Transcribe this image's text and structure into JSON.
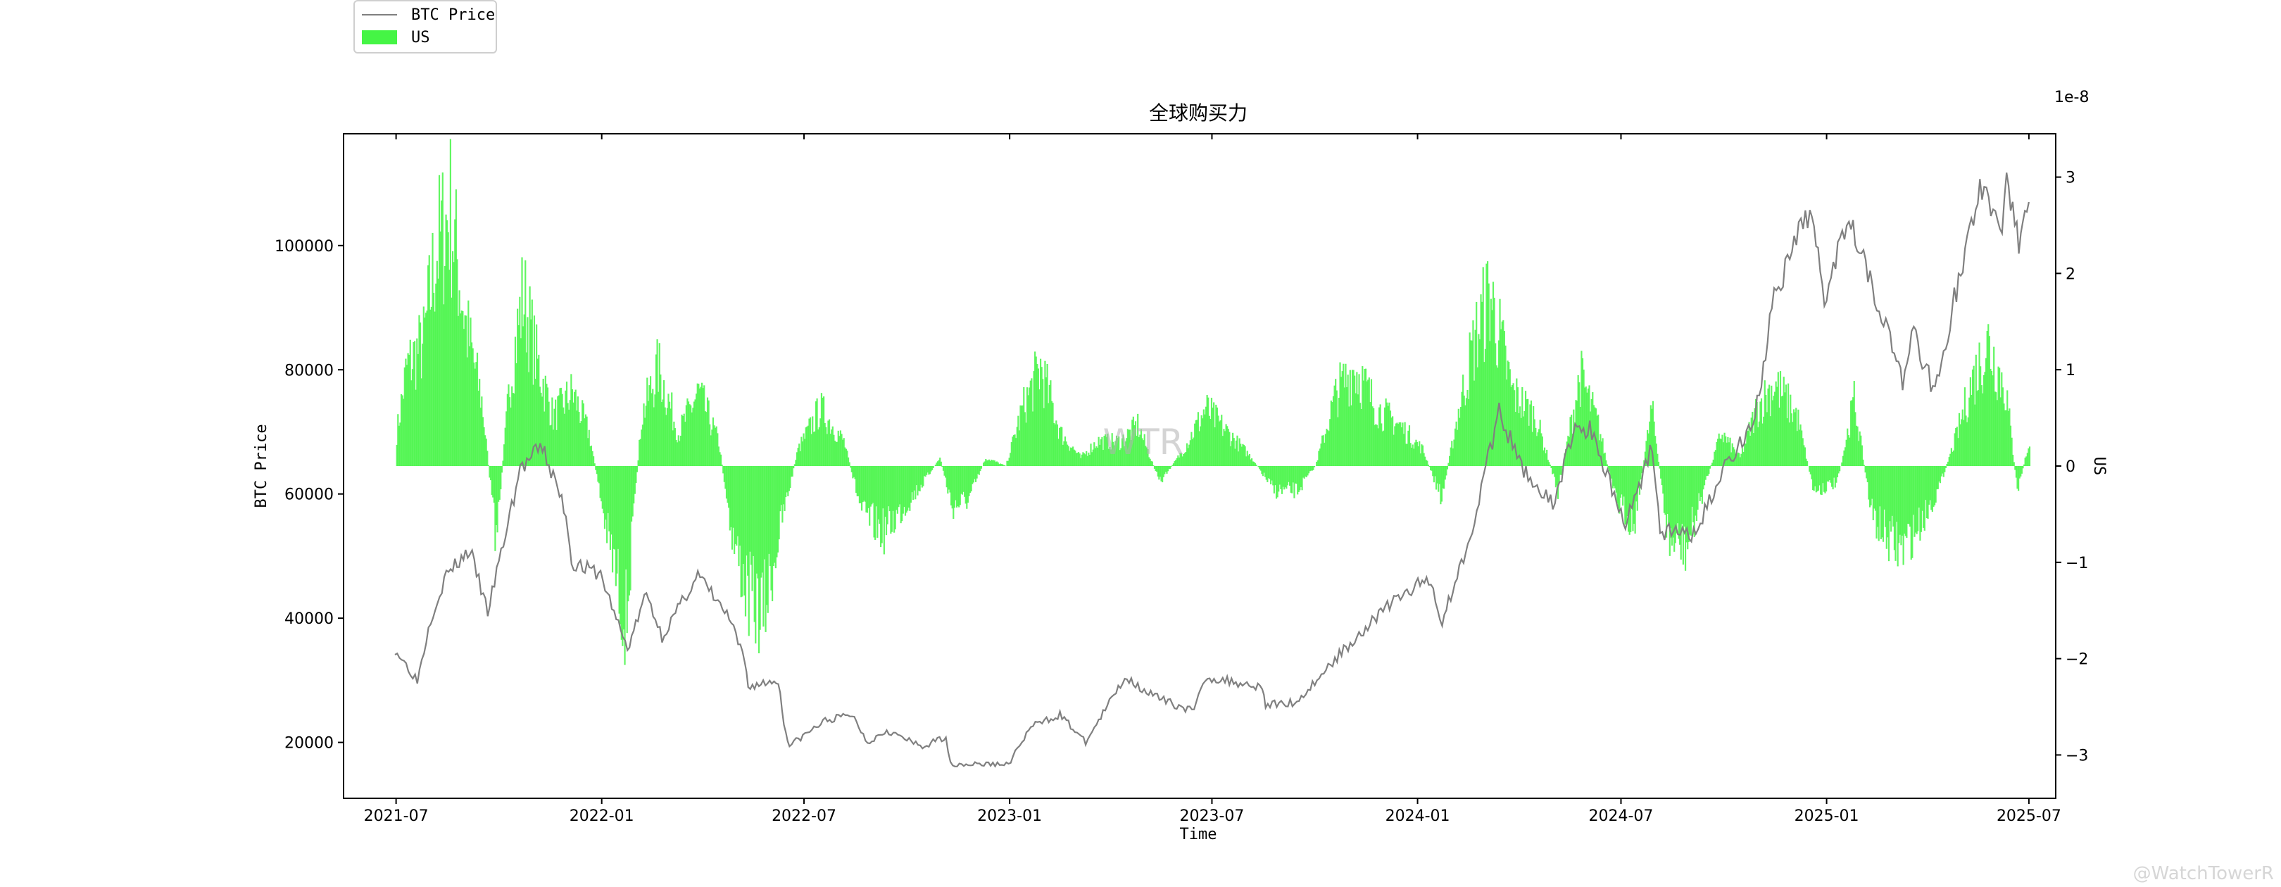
{
  "legend": {
    "price_label": "BTC Price",
    "flow_label": "US"
  },
  "watermark_center": "WTR",
  "watermark_corner": "@WatchTowerR",
  "chart_data": {
    "type": "bar+line",
    "title": "全球购买力",
    "xlabel": "Time",
    "ylabel_left": "BTC Price",
    "ylabel_right": "US",
    "right_axis_offset_text": "1e-8",
    "x_ticks": [
      "2021-07",
      "2022-01",
      "2022-07",
      "2023-01",
      "2023-07",
      "2024-01",
      "2024-07",
      "2025-01",
      "2025-07"
    ],
    "y_left_ticks": [
      20000,
      40000,
      60000,
      80000,
      100000
    ],
    "y_left_range": [
      11000,
      118000
    ],
    "y_right_ticks": [
      -3,
      -2,
      -1,
      0,
      1,
      2,
      3
    ],
    "y_right_range": [
      -3.45,
      3.45
    ],
    "x_range": [
      "2021-05-15",
      "2025-07-25"
    ],
    "colors": {
      "price": "#808080",
      "bars": "#45f545"
    },
    "series": [
      {
        "name": "BTC Price",
        "kind": "line",
        "points": [
          [
            "2021-06-30",
            35000
          ],
          [
            "2021-07-20",
            30000
          ],
          [
            "2021-08-01",
            40000
          ],
          [
            "2021-08-15",
            47000
          ],
          [
            "2021-09-05",
            51000
          ],
          [
            "2021-09-21",
            41000
          ],
          [
            "2021-10-05",
            52000
          ],
          [
            "2021-10-20",
            64000
          ],
          [
            "2021-11-09",
            67500
          ],
          [
            "2021-11-30",
            57000
          ],
          [
            "2021-12-05",
            49000
          ],
          [
            "2021-12-31",
            47000
          ],
          [
            "2022-01-24",
            35000
          ],
          [
            "2022-02-10",
            44000
          ],
          [
            "2022-02-24",
            37000
          ],
          [
            "2022-03-28",
            47000
          ],
          [
            "2022-04-25",
            40000
          ],
          [
            "2022-05-09",
            33000
          ],
          [
            "2022-05-12",
            29000
          ],
          [
            "2022-06-08",
            30000
          ],
          [
            "2022-06-13",
            23000
          ],
          [
            "2022-06-18",
            19500
          ],
          [
            "2022-07-20",
            23500
          ],
          [
            "2022-08-13",
            24500
          ],
          [
            "2022-08-27",
            20000
          ],
          [
            "2022-09-13",
            22000
          ],
          [
            "2022-10-15",
            19200
          ],
          [
            "2022-11-05",
            21000
          ],
          [
            "2022-11-09",
            16500
          ],
          [
            "2022-12-31",
            16500
          ],
          [
            "2023-01-20",
            22500
          ],
          [
            "2023-02-15",
            24500
          ],
          [
            "2023-03-10",
            20000
          ],
          [
            "2023-04-14",
            30500
          ],
          [
            "2023-05-15",
            27000
          ],
          [
            "2023-06-15",
            25000
          ],
          [
            "2023-06-25",
            30500
          ],
          [
            "2023-08-15",
            29000
          ],
          [
            "2023-08-18",
            26000
          ],
          [
            "2023-09-15",
            26500
          ],
          [
            "2023-10-25",
            34500
          ],
          [
            "2023-12-05",
            42000
          ],
          [
            "2024-01-11",
            46500
          ],
          [
            "2024-01-23",
            39500
          ],
          [
            "2024-02-15",
            52000
          ],
          [
            "2024-03-14",
            73000
          ],
          [
            "2024-04-01",
            65000
          ],
          [
            "2024-05-01",
            58000
          ],
          [
            "2024-05-21",
            71000
          ],
          [
            "2024-06-05",
            70000
          ],
          [
            "2024-07-05",
            55000
          ],
          [
            "2024-07-29",
            68000
          ],
          [
            "2024-08-05",
            54000
          ],
          [
            "2024-09-06",
            53500
          ],
          [
            "2024-09-30",
            64000
          ],
          [
            "2024-10-29",
            72000
          ],
          [
            "2024-11-13",
            90000
          ],
          [
            "2024-12-17",
            106000
          ],
          [
            "2024-12-30",
            92000
          ],
          [
            "2025-01-21",
            106000
          ],
          [
            "2025-02-03",
            98000
          ],
          [
            "2025-02-25",
            86000
          ],
          [
            "2025-03-10",
            78000
          ],
          [
            "2025-03-20",
            86000
          ],
          [
            "2025-04-08",
            76500
          ],
          [
            "2025-05-01",
            96000
          ],
          [
            "2025-05-22",
            111000
          ],
          [
            "2025-06-05",
            101000
          ],
          [
            "2025-06-11",
            110000
          ],
          [
            "2025-06-22",
            101000
          ],
          [
            "2025-07-01",
            107000
          ]
        ]
      },
      {
        "name": "US",
        "kind": "bar",
        "scale": "1e-8",
        "knots": [
          [
            "2021-07-01",
            0.4
          ],
          [
            "2021-07-10",
            1.2
          ],
          [
            "2021-07-25",
            1.5
          ],
          [
            "2021-08-05",
            2.6
          ],
          [
            "2021-08-18",
            3.1
          ],
          [
            "2021-09-01",
            1.7
          ],
          [
            "2021-09-15",
            0.8
          ],
          [
            "2021-09-28",
            -0.9
          ],
          [
            "2021-10-10",
            1.0
          ],
          [
            "2021-10-22",
            2.1
          ],
          [
            "2021-11-03",
            1.3
          ],
          [
            "2021-11-18",
            0.6
          ],
          [
            "2021-12-05",
            0.9
          ],
          [
            "2021-12-20",
            0.4
          ],
          [
            "2022-01-05",
            -0.8
          ],
          [
            "2022-01-22",
            -1.9
          ],
          [
            "2022-02-05",
            0.6
          ],
          [
            "2022-02-20",
            1.2
          ],
          [
            "2022-03-10",
            0.4
          ],
          [
            "2022-03-28",
            0.9
          ],
          [
            "2022-04-15",
            0.3
          ],
          [
            "2022-04-28",
            -0.9
          ],
          [
            "2022-05-12",
            -1.6
          ],
          [
            "2022-05-25",
            -1.8
          ],
          [
            "2022-06-10",
            -0.7
          ],
          [
            "2022-06-25",
            0.2
          ],
          [
            "2022-07-15",
            0.7
          ],
          [
            "2022-08-05",
            0.3
          ],
          [
            "2022-08-22",
            -0.6
          ],
          [
            "2022-09-10",
            -0.8
          ],
          [
            "2022-09-28",
            -0.5
          ],
          [
            "2022-10-15",
            -0.2
          ],
          [
            "2022-10-30",
            0.1
          ],
          [
            "2022-11-10",
            -0.5
          ],
          [
            "2022-11-25",
            -0.4
          ],
          [
            "2022-12-10",
            0.1
          ],
          [
            "2022-12-28",
            0.0
          ],
          [
            "2023-01-12",
            0.7
          ],
          [
            "2023-01-28",
            1.2
          ],
          [
            "2023-02-15",
            0.4
          ],
          [
            "2023-03-05",
            0.1
          ],
          [
            "2023-03-20",
            0.3
          ],
          [
            "2023-04-10",
            0.3
          ],
          [
            "2023-04-25",
            0.5
          ],
          [
            "2023-05-15",
            -0.2
          ],
          [
            "2023-06-05",
            0.2
          ],
          [
            "2023-06-25",
            0.7
          ],
          [
            "2023-07-15",
            0.4
          ],
          [
            "2023-08-05",
            0.1
          ],
          [
            "2023-08-25",
            -0.3
          ],
          [
            "2023-09-15",
            -0.3
          ],
          [
            "2023-10-01",
            0.0
          ],
          [
            "2023-10-20",
            0.9
          ],
          [
            "2023-11-05",
            1.2
          ],
          [
            "2023-11-25",
            0.7
          ],
          [
            "2023-12-15",
            0.5
          ],
          [
            "2024-01-05",
            0.2
          ],
          [
            "2024-01-22",
            -0.4
          ],
          [
            "2024-02-05",
            0.6
          ],
          [
            "2024-02-20",
            1.5
          ],
          [
            "2024-03-05",
            2.1
          ],
          [
            "2024-03-25",
            0.9
          ],
          [
            "2024-04-15",
            0.6
          ],
          [
            "2024-05-05",
            -0.3
          ],
          [
            "2024-05-25",
            1.1
          ],
          [
            "2024-06-10",
            0.5
          ],
          [
            "2024-06-25",
            -0.4
          ],
          [
            "2024-07-12",
            -0.7
          ],
          [
            "2024-07-28",
            0.7
          ],
          [
            "2024-08-12",
            -0.9
          ],
          [
            "2024-08-28",
            -1.0
          ],
          [
            "2024-09-12",
            -0.3
          ],
          [
            "2024-09-28",
            0.4
          ],
          [
            "2024-10-15",
            0.1
          ],
          [
            "2024-10-30",
            0.7
          ],
          [
            "2024-11-15",
            1.0
          ],
          [
            "2024-12-05",
            0.6
          ],
          [
            "2024-12-20",
            -0.3
          ],
          [
            "2025-01-10",
            -0.2
          ],
          [
            "2025-01-25",
            0.8
          ],
          [
            "2025-02-10",
            -0.6
          ],
          [
            "2025-02-25",
            -0.9
          ],
          [
            "2025-03-10",
            -1.0
          ],
          [
            "2025-03-25",
            -0.7
          ],
          [
            "2025-04-10",
            -0.3
          ],
          [
            "2025-04-25",
            0.3
          ],
          [
            "2025-05-10",
            1.0
          ],
          [
            "2025-05-25",
            1.5
          ],
          [
            "2025-06-10",
            0.9
          ],
          [
            "2025-06-20",
            -0.3
          ],
          [
            "2025-07-01",
            0.3
          ]
        ]
      }
    ]
  }
}
